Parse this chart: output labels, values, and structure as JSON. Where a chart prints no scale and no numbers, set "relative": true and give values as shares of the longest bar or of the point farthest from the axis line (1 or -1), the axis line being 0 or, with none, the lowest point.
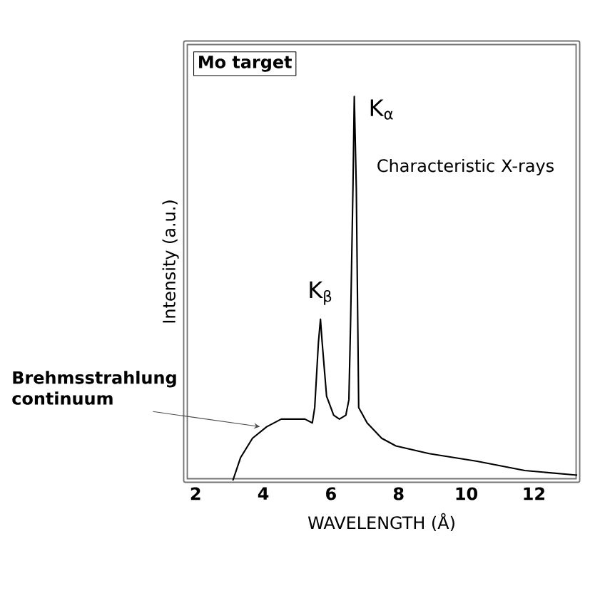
{
  "chart_data": {
    "type": "line",
    "relative": true,
    "xlabel": "WAVELENGTH (Å)",
    "ylabel": "Intensity (a.u.)",
    "x": [
      3.1,
      3.33,
      3.68,
      4.1,
      4.53,
      4.95,
      5.23,
      5.45,
      5.52,
      5.63,
      5.69,
      5.74,
      5.87,
      6.08,
      6.25,
      6.44,
      6.53,
      6.58,
      6.65,
      6.69,
      6.75,
      6.82,
      7.07,
      7.5,
      7.92,
      8.9,
      10.32,
      11.73,
      13.28
    ],
    "series": [
      {
        "color": "#000000",
        "values": [
          0,
          0.06,
          0.11,
          0.14,
          0.16,
          0.16,
          0.16,
          0.15,
          0.19,
          0.36,
          0.42,
          0.36,
          0.22,
          0.17,
          0.16,
          0.17,
          0.21,
          0.41,
          0.76,
          1.0,
          0.76,
          0.19,
          0.15,
          0.11,
          0.09,
          0.07,
          0.05,
          0.026,
          0.014
        ]
      }
    ],
    "xlim": [
      1.7,
      13.3
    ],
    "xticks": [
      2,
      4,
      6,
      8,
      10,
      12
    ],
    "annotations": [
      "Mo target",
      {
        "text": "K$_{α}$",
        "x": 6.69,
        "y": 1.0
      },
      "Characteristic X-rays",
      {
        "text": "K$_{β}$",
        "x": 5.69,
        "y": 0.42
      },
      {
        "text": "Brehmsstrahlung continuum",
        "x": 3.9,
        "y": 0.14
      }
    ]
  }
}
